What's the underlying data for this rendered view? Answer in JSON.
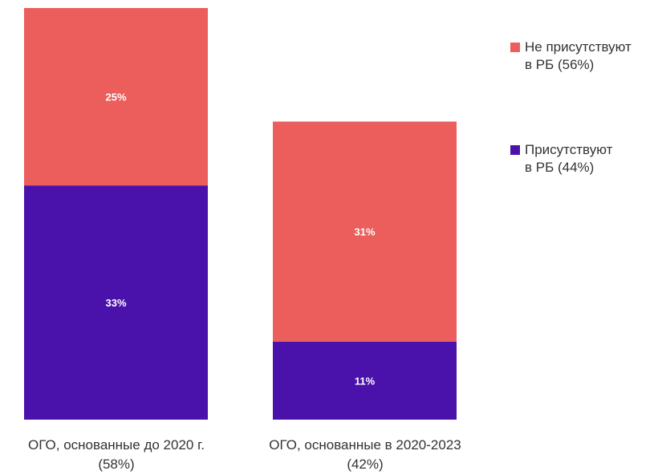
{
  "chart_data": {
    "type": "bar",
    "stacked": true,
    "categories": [
      "ОГО, основанные до 2020 г.\n(58%)",
      "ОГО, основанные в 2020-2023\n(42%)"
    ],
    "series": [
      {
        "name": "Присутствуют\nв РБ (44%)",
        "values": [
          33,
          11
        ],
        "labels": [
          "33%",
          "11%"
        ],
        "color": "#4a12ab"
      },
      {
        "name": "Не присутствуют\nв РБ (56%)",
        "values": [
          25,
          31
        ],
        "labels": [
          "25%",
          "31%"
        ],
        "color": "#eb5e5c"
      }
    ],
    "ylim": [
      0,
      58
    ],
    "grid": false,
    "legend_position": "top-right",
    "label_color": "#ffffff"
  }
}
